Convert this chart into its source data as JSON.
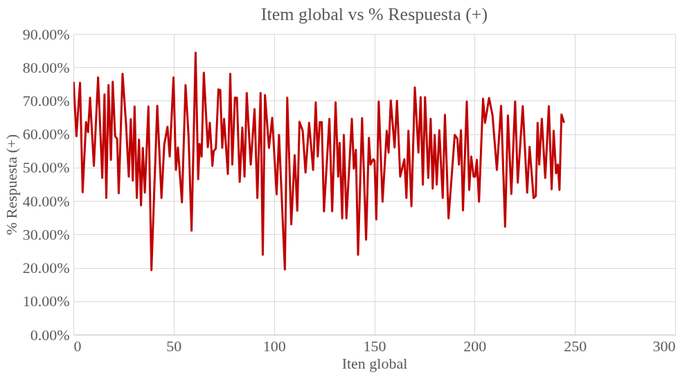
{
  "chart_data": {
    "type": "line",
    "title": "Item global vs % Respuesta (+)",
    "xlabel": "Iten global",
    "ylabel": "% Respuesta (+)",
    "xlim": [
      0,
      300
    ],
    "xticks": [
      0,
      50,
      100,
      150,
      200,
      250,
      300
    ],
    "ylim": [
      0,
      90
    ],
    "yticks": [
      {
        "value": 0,
        "label": "0.00%"
      },
      {
        "value": 10,
        "label": "10.00%"
      },
      {
        "value": 20,
        "label": "20.00%"
      },
      {
        "value": 30,
        "label": "30.00%"
      },
      {
        "value": 40,
        "label": "40.00%"
      },
      {
        "value": 50,
        "label": "50.00%"
      },
      {
        "value": 60,
        "label": "60.00%"
      },
      {
        "value": 70,
        "label": "70.00%"
      },
      {
        "value": 80,
        "label": "80.00%"
      },
      {
        "value": 90,
        "label": "90.00%"
      }
    ],
    "grid": true,
    "legend": false,
    "marker": "none",
    "line_style": "solid",
    "series": [
      {
        "color": "#c00000",
        "x": [
          0.1,
          1.5,
          3.3,
          4.6,
          6.3,
          7.3,
          8.3,
          10.2,
          12.3,
          14.4,
          15.5,
          16.4,
          17.5,
          18.7,
          19.6,
          20.8,
          21.8,
          22.6,
          24.5,
          26.2,
          27.6,
          28.6,
          29.6,
          30.5,
          31.6,
          32.7,
          33.7,
          34.6,
          35.6,
          37.4,
          38.9,
          41.8,
          43.9,
          45.3,
          46.9,
          48.0,
          49.9,
          51.1,
          52.1,
          54.1,
          55.9,
          57.4,
          58.9,
          60.9,
          62.2,
          62.9,
          63.9,
          65.0,
          67.0,
          68.0,
          69.3,
          69.9,
          71.0,
          72.3,
          73.2,
          74.2,
          75.1,
          77.0,
          78.2,
          79.2,
          80.5,
          81.5,
          82.9,
          84.2,
          85.3,
          86.4,
          88.4,
          90.3,
          91.7,
          93.3,
          94.4,
          95.5,
          97.5,
          99.1,
          101.3,
          102.5,
          105.4,
          106.6,
          108.6,
          110.3,
          111.6,
          112.7,
          114.3,
          115.7,
          117.5,
          119.5,
          120.8,
          121.8,
          122.8,
          123.8,
          124.9,
          127.6,
          129.0,
          130.7,
          132.0,
          132.7,
          134.0,
          134.8,
          136.1,
          138.8,
          139.8,
          140.8,
          141.9,
          143.9,
          145.9,
          147.3,
          148.1,
          149.4,
          150.1,
          151.0,
          152.2,
          154.1,
          156.2,
          157.1,
          158.2,
          160.1,
          161.3,
          162.9,
          165.0,
          166.0,
          167.0,
          168.5,
          170.2,
          172.0,
          173.1,
          174.2,
          175.3,
          176.9,
          178.1,
          179.1,
          180.1,
          181.1,
          182.4,
          184.1,
          185.2,
          187.0,
          190.1,
          191.4,
          192.2,
          193.2,
          194.2,
          196.1,
          197.3,
          198.3,
          199.5,
          200.3,
          201.1,
          202.2,
          204.2,
          205.2,
          207.2,
          208.9,
          211.1,
          213.2,
          215.2,
          216.6,
          218.3,
          220.2,
          221.5,
          224.0,
          226.2,
          227.4,
          229.4,
          230.5,
          231.4,
          232.2,
          233.5,
          235.2,
          237.0,
          238.4,
          239.4,
          240.6,
          241.5,
          242.3,
          243.3,
          244.6
        ],
        "values": [
          75.7,
          59.4,
          75.4,
          42.6,
          63.6,
          60.6,
          70.9,
          50.5,
          77.0,
          46.9,
          71.9,
          40.9,
          74.7,
          52.3,
          75.7,
          59.4,
          58.6,
          42.3,
          78.1,
          63.4,
          47.3,
          64.5,
          46.1,
          68.3,
          40.9,
          58.4,
          38.7,
          55.9,
          42.5,
          68.3,
          19.3,
          68.5,
          40.9,
          56.9,
          62.2,
          53.3,
          77.0,
          49.3,
          56.0,
          39.6,
          74.7,
          59.4,
          31.1,
          84.4,
          46.5,
          57.1,
          53.3,
          78.4,
          56.1,
          63.4,
          50.5,
          54.9,
          55.7,
          73.4,
          73.2,
          55.9,
          64.6,
          48.1,
          78.1,
          50.9,
          70.9,
          70.9,
          45.7,
          62.0,
          47.3,
          72.3,
          50.9,
          67.5,
          40.9,
          72.3,
          23.9,
          71.7,
          55.9,
          64.9,
          42.0,
          59.8,
          19.5,
          70.9,
          33.0,
          53.7,
          37.1,
          63.7,
          61.0,
          48.5,
          63.4,
          49.3,
          69.5,
          53.3,
          63.6,
          63.6,
          36.9,
          64.6,
          36.9,
          69.5,
          47.3,
          57.4,
          34.8,
          59.8,
          34.8,
          64.6,
          49.7,
          55.3,
          23.9,
          64.8,
          28.4,
          58.9,
          50.9,
          52.5,
          52.1,
          34.5,
          69.8,
          39.8,
          61.0,
          54.5,
          70.1,
          56.0,
          70.0,
          47.3,
          52.5,
          40.9,
          61.0,
          38.4,
          74.0,
          54.5,
          71.1,
          44.9,
          71.1,
          46.9,
          64.6,
          43.7,
          59.8,
          44.9,
          61.2,
          40.9,
          65.8,
          34.8,
          59.8,
          58.6,
          50.9,
          61.2,
          37.2,
          69.8,
          43.3,
          53.3,
          47.3,
          47.3,
          52.3,
          39.8,
          70.6,
          63.4,
          70.8,
          65.8,
          49.3,
          68.5,
          32.3,
          65.6,
          42.1,
          69.8,
          45.5,
          68.4,
          42.5,
          56.2,
          40.9,
          41.5,
          63.4,
          50.9,
          64.6,
          46.9,
          68.4,
          43.5,
          61.0,
          48.3,
          50.9,
          43.3,
          65.9,
          63.4
        ]
      }
    ]
  }
}
